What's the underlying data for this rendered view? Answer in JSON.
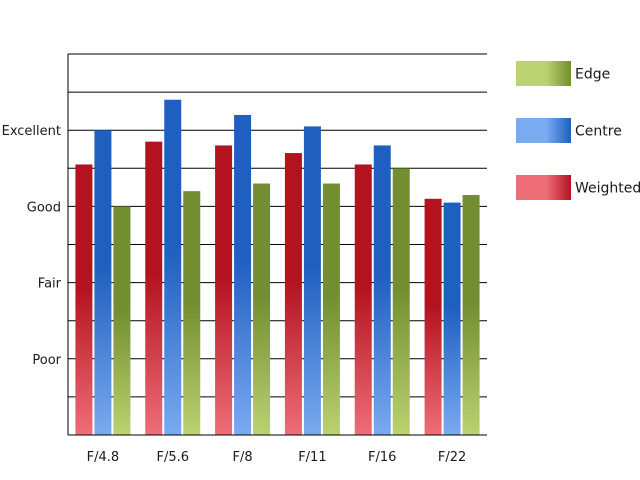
{
  "chart_data": {
    "type": "bar",
    "title": "",
    "xlabel": "",
    "ylabel": "",
    "categories": [
      "F/4.8",
      "F/5.6",
      "F/8",
      "F/11",
      "F/16",
      "F/22"
    ],
    "y_scale": {
      "levels": 9,
      "labeled_ticks": [
        {
          "value": 2,
          "label": "Poor"
        },
        {
          "value": 4,
          "label": "Fair"
        },
        {
          "value": 6,
          "label": "Good"
        },
        {
          "value": 8,
          "label": "Excellent"
        }
      ],
      "ylim": [
        0,
        10
      ]
    },
    "grid": "horizontal",
    "legend_position": "right",
    "series": [
      {
        "name": "Weighted",
        "values": [
          7.1,
          7.7,
          7.6,
          7.4,
          7.1,
          6.2
        ],
        "color_dark": "#b3121f",
        "color_light": "#ee6e78"
      },
      {
        "name": "Centre",
        "values": [
          8.0,
          8.8,
          8.4,
          8.1,
          7.6,
          6.1
        ],
        "color_dark": "#1f5fbf",
        "color_light": "#7aaaf0"
      },
      {
        "name": "Edge",
        "values": [
          6.0,
          6.4,
          6.6,
          6.6,
          7.0,
          6.3
        ],
        "color_dark": "#728e30",
        "color_light": "#bbd270"
      }
    ],
    "legend_order": [
      "Edge",
      "Centre",
      "Weighted"
    ]
  }
}
